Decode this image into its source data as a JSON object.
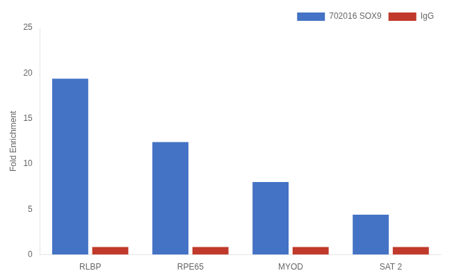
{
  "chart_data": {
    "type": "bar",
    "categories": [
      "RLBP",
      "RPE65",
      "MYOD",
      "SAT 2"
    ],
    "series": [
      {
        "name": "702016 SOX9",
        "color": "#4472C4",
        "values": [
          19.4,
          12.4,
          8.0,
          4.4
        ]
      },
      {
        "name": "IgG",
        "color": "#C0392B",
        "values": [
          0.85,
          0.85,
          0.85,
          0.85
        ]
      }
    ],
    "ylabel": "Fold Enrichment",
    "ylim": [
      0,
      25
    ],
    "yticks": [
      0,
      5,
      10,
      15,
      20,
      25
    ],
    "grid": false,
    "legend": "upper right"
  }
}
